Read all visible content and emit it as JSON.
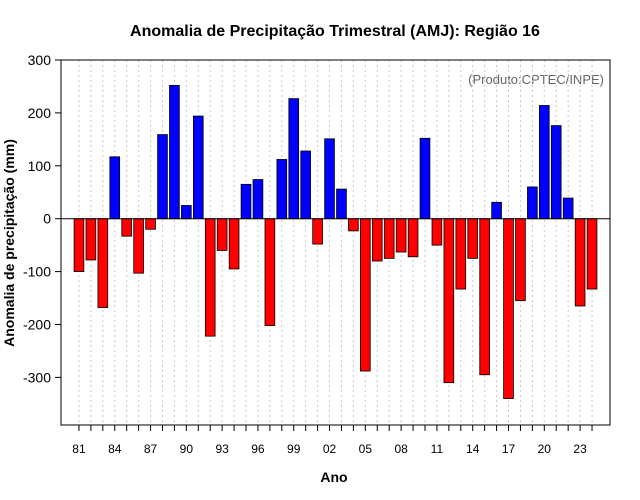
{
  "chart_data": {
    "type": "bar",
    "title": "Anomalia de Precipitação Trimestral (AMJ): Região 16",
    "xlabel": "Ano",
    "ylabel": "Anomalia de precipitação (mm)",
    "annotation": "(Produto:CPTEC/INPE)",
    "ylim": [
      -390,
      300
    ],
    "yticks": [
      300,
      200,
      100,
      0,
      -100,
      -200,
      -300
    ],
    "categories": [
      "1981",
      "1982",
      "1983",
      "1984",
      "1985",
      "1986",
      "1987",
      "1988",
      "1989",
      "1990",
      "1991",
      "1992",
      "1993",
      "1994",
      "1995",
      "1996",
      "1997",
      "1998",
      "1999",
      "2000",
      "2001",
      "2002",
      "2003",
      "2004",
      "2005",
      "2006",
      "2007",
      "2008",
      "2009",
      "2010",
      "2011",
      "2012",
      "2013",
      "2014",
      "2015",
      "2016",
      "2017",
      "2018",
      "2019",
      "2020",
      "2021",
      "2022",
      "2023",
      "2024"
    ],
    "xtick_labels": [
      "81",
      "",
      "",
      "84",
      "",
      "",
      "87",
      "",
      "",
      "90",
      "",
      "",
      "93",
      "",
      "",
      "96",
      "",
      "",
      "99",
      "",
      "",
      "02",
      "",
      "",
      "05",
      "",
      "",
      "08",
      "",
      "",
      "11",
      "",
      "",
      "14",
      "",
      "",
      "17",
      "",
      "",
      "20",
      "",
      "",
      "23",
      ""
    ],
    "values": [
      -100,
      -78,
      -168,
      117,
      -33,
      -103,
      -20,
      159,
      252,
      25,
      194,
      -222,
      -60,
      -95,
      65,
      74,
      -202,
      112,
      227,
      128,
      -48,
      151,
      56,
      -23,
      -288,
      -80,
      -75,
      -63,
      -72,
      152,
      -50,
      -310,
      -133,
      -75,
      -295,
      31,
      -340,
      -155,
      60,
      214,
      176,
      39,
      -165,
      -133
    ],
    "colors": {
      "positive": "#0000ff",
      "negative": "#ff0000",
      "edge": "#000000"
    }
  }
}
